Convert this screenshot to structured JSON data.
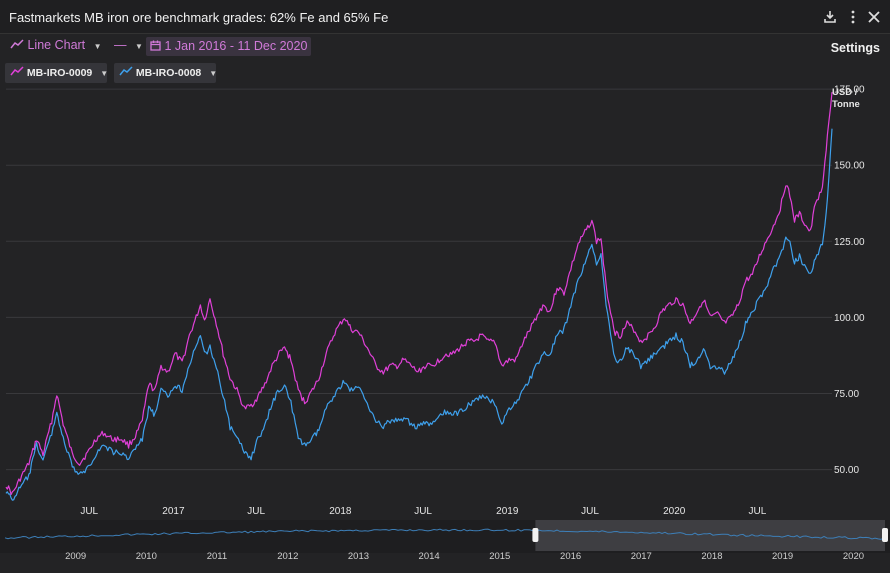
{
  "window": {
    "title": "Fastmarkets MB iron ore benchmark grades: 62% Fe and 65% Fe",
    "download_icon": "download-icon",
    "menu_icon": "vertical-dots-icon",
    "close_icon": "close-icon"
  },
  "toolbar": {
    "chart_type_label": "Line Chart",
    "line_style_label": "—",
    "date_range_label": "1 Jan 2016 - 11 Dec 2020",
    "settings_label": "Settings"
  },
  "series_chips": [
    {
      "label": "MB-IRO-0009",
      "color": "#e040d8"
    },
    {
      "label": "MB-IRO-0008",
      "color": "#3ea0ec"
    }
  ],
  "chart_data": {
    "type": "line",
    "unit_label_line1": "USD /",
    "unit_label_line2": "Tonne",
    "ylim": [
      40,
      178
    ],
    "xlim": [
      "2016-01-01",
      "2020-12-11"
    ],
    "y_ticks": [
      50,
      75,
      100,
      125,
      150,
      175
    ],
    "y_tick_labels": [
      "50.00",
      "75.00",
      "100.00",
      "125.00",
      "150.00",
      "175.00"
    ],
    "x_ticks": [
      {
        "date": "2016-07-01",
        "label": "JUL"
      },
      {
        "date": "2017-01-01",
        "label": "2017"
      },
      {
        "date": "2017-07-01",
        "label": "JUL"
      },
      {
        "date": "2018-01-01",
        "label": "2018"
      },
      {
        "date": "2018-07-01",
        "label": "JUL"
      },
      {
        "date": "2019-01-01",
        "label": "2019"
      },
      {
        "date": "2019-07-01",
        "label": "JUL"
      },
      {
        "date": "2020-01-01",
        "label": "2020"
      },
      {
        "date": "2020-07-01",
        "label": "JUL"
      }
    ],
    "grid": true,
    "series": [
      {
        "name": "MB-IRO-0009",
        "color": "#e040d8",
        "points": [
          [
            "2016-01-01",
            45
          ],
          [
            "2016-01-15",
            42
          ],
          [
            "2016-02-01",
            47
          ],
          [
            "2016-02-20",
            52
          ],
          [
            "2016-03-08",
            60
          ],
          [
            "2016-03-22",
            55
          ],
          [
            "2016-04-10",
            66
          ],
          [
            "2016-04-21",
            75
          ],
          [
            "2016-05-05",
            65
          ],
          [
            "2016-05-25",
            55
          ],
          [
            "2016-06-10",
            52
          ],
          [
            "2016-06-30",
            56
          ],
          [
            "2016-07-15",
            60
          ],
          [
            "2016-08-01",
            62
          ],
          [
            "2016-08-20",
            60
          ],
          [
            "2016-09-10",
            60
          ],
          [
            "2016-09-25",
            58
          ],
          [
            "2016-10-10",
            61
          ],
          [
            "2016-10-25",
            66
          ],
          [
            "2016-11-08",
            78
          ],
          [
            "2016-11-22",
            76
          ],
          [
            "2016-12-05",
            84
          ],
          [
            "2016-12-20",
            82
          ],
          [
            "2017-01-05",
            88
          ],
          [
            "2017-01-20",
            85
          ],
          [
            "2017-02-05",
            94
          ],
          [
            "2017-02-20",
            100
          ],
          [
            "2017-03-01",
            104
          ],
          [
            "2017-03-10",
            99
          ],
          [
            "2017-03-22",
            106
          ],
          [
            "2017-04-05",
            98
          ],
          [
            "2017-04-20",
            88
          ],
          [
            "2017-05-05",
            80
          ],
          [
            "2017-05-20",
            76
          ],
          [
            "2017-06-05",
            70
          ],
          [
            "2017-06-20",
            71
          ],
          [
            "2017-07-05",
            74
          ],
          [
            "2017-07-20",
            78
          ],
          [
            "2017-08-05",
            84
          ],
          [
            "2017-08-20",
            88
          ],
          [
            "2017-09-01",
            90
          ],
          [
            "2017-09-15",
            86
          ],
          [
            "2017-10-01",
            76
          ],
          [
            "2017-10-15",
            72
          ],
          [
            "2017-11-01",
            76
          ],
          [
            "2017-11-15",
            80
          ],
          [
            "2017-12-01",
            88
          ],
          [
            "2017-12-20",
            95
          ],
          [
            "2018-01-10",
            100
          ],
          [
            "2018-01-25",
            96
          ],
          [
            "2018-02-10",
            95
          ],
          [
            "2018-03-01",
            90
          ],
          [
            "2018-03-20",
            84
          ],
          [
            "2018-04-05",
            82
          ],
          [
            "2018-04-20",
            84
          ],
          [
            "2018-05-05",
            84
          ],
          [
            "2018-05-20",
            86
          ],
          [
            "2018-06-05",
            84
          ],
          [
            "2018-06-20",
            82
          ],
          [
            "2018-07-05",
            84
          ],
          [
            "2018-07-20",
            84
          ],
          [
            "2018-08-05",
            86
          ],
          [
            "2018-08-20",
            88
          ],
          [
            "2018-09-05",
            88
          ],
          [
            "2018-09-20",
            90
          ],
          [
            "2018-10-05",
            92
          ],
          [
            "2018-10-20",
            92
          ],
          [
            "2018-11-05",
            94
          ],
          [
            "2018-11-20",
            92
          ],
          [
            "2018-12-05",
            92
          ],
          [
            "2018-12-20",
            84
          ],
          [
            "2019-01-05",
            86
          ],
          [
            "2019-01-20",
            86
          ],
          [
            "2019-02-05",
            92
          ],
          [
            "2019-02-20",
            96
          ],
          [
            "2019-03-05",
            100
          ],
          [
            "2019-03-20",
            104
          ],
          [
            "2019-04-05",
            102
          ],
          [
            "2019-04-20",
            110
          ],
          [
            "2019-05-05",
            108
          ],
          [
            "2019-05-20",
            116
          ],
          [
            "2019-06-05",
            124
          ],
          [
            "2019-06-20",
            128
          ],
          [
            "2019-07-05",
            132
          ],
          [
            "2019-07-15",
            125
          ],
          [
            "2019-07-25",
            126
          ],
          [
            "2019-08-05",
            110
          ],
          [
            "2019-08-15",
            102
          ],
          [
            "2019-08-25",
            95
          ],
          [
            "2019-09-05",
            94
          ],
          [
            "2019-09-20",
            98
          ],
          [
            "2019-10-05",
            96
          ],
          [
            "2019-10-20",
            92
          ],
          [
            "2019-11-05",
            94
          ],
          [
            "2019-11-20",
            97
          ],
          [
            "2019-12-05",
            102
          ],
          [
            "2019-12-20",
            104
          ],
          [
            "2020-01-05",
            106
          ],
          [
            "2020-01-20",
            104
          ],
          [
            "2020-02-05",
            98
          ],
          [
            "2020-02-20",
            102
          ],
          [
            "2020-03-05",
            106
          ],
          [
            "2020-03-20",
            100
          ],
          [
            "2020-04-05",
            101
          ],
          [
            "2020-04-20",
            98
          ],
          [
            "2020-05-05",
            100
          ],
          [
            "2020-05-20",
            104
          ],
          [
            "2020-06-05",
            112
          ],
          [
            "2020-06-20",
            114
          ],
          [
            "2020-07-05",
            120
          ],
          [
            "2020-07-20",
            125
          ],
          [
            "2020-08-05",
            130
          ],
          [
            "2020-08-20",
            136
          ],
          [
            "2020-09-01",
            144
          ],
          [
            "2020-09-10",
            140
          ],
          [
            "2020-09-20",
            132
          ],
          [
            "2020-10-01",
            134
          ],
          [
            "2020-10-15",
            130
          ],
          [
            "2020-10-25",
            128
          ],
          [
            "2020-11-05",
            138
          ],
          [
            "2020-11-20",
            142
          ],
          [
            "2020-12-01",
            160
          ],
          [
            "2020-12-11",
            174
          ]
        ]
      },
      {
        "name": "MB-IRO-0008",
        "color": "#3ea0ec",
        "points": [
          [
            "2016-01-01",
            43
          ],
          [
            "2016-01-15",
            40
          ],
          [
            "2016-02-01",
            44
          ],
          [
            "2016-02-20",
            48
          ],
          [
            "2016-03-08",
            58
          ],
          [
            "2016-03-22",
            53
          ],
          [
            "2016-04-10",
            62
          ],
          [
            "2016-04-21",
            69
          ],
          [
            "2016-05-05",
            60
          ],
          [
            "2016-05-25",
            51
          ],
          [
            "2016-06-10",
            48
          ],
          [
            "2016-06-30",
            51
          ],
          [
            "2016-07-15",
            55
          ],
          [
            "2016-08-01",
            58
          ],
          [
            "2016-08-20",
            56
          ],
          [
            "2016-09-10",
            55
          ],
          [
            "2016-09-25",
            54
          ],
          [
            "2016-10-10",
            57
          ],
          [
            "2016-10-25",
            60
          ],
          [
            "2016-11-08",
            70
          ],
          [
            "2016-11-22",
            68
          ],
          [
            "2016-12-05",
            76
          ],
          [
            "2016-12-20",
            74
          ],
          [
            "2017-01-05",
            78
          ],
          [
            "2017-01-20",
            76
          ],
          [
            "2017-02-05",
            85
          ],
          [
            "2017-02-20",
            90
          ],
          [
            "2017-03-01",
            94
          ],
          [
            "2017-03-10",
            88
          ],
          [
            "2017-03-22",
            90
          ],
          [
            "2017-04-05",
            84
          ],
          [
            "2017-04-20",
            74
          ],
          [
            "2017-05-05",
            64
          ],
          [
            "2017-05-20",
            60
          ],
          [
            "2017-06-05",
            56
          ],
          [
            "2017-06-20",
            54
          ],
          [
            "2017-07-05",
            60
          ],
          [
            "2017-07-20",
            64
          ],
          [
            "2017-08-05",
            72
          ],
          [
            "2017-08-20",
            76
          ],
          [
            "2017-09-01",
            78
          ],
          [
            "2017-09-15",
            72
          ],
          [
            "2017-10-01",
            60
          ],
          [
            "2017-10-15",
            58
          ],
          [
            "2017-11-01",
            60
          ],
          [
            "2017-11-15",
            63
          ],
          [
            "2017-12-01",
            70
          ],
          [
            "2017-12-20",
            75
          ],
          [
            "2018-01-10",
            79
          ],
          [
            "2018-01-25",
            76
          ],
          [
            "2018-02-10",
            77
          ],
          [
            "2018-03-01",
            72
          ],
          [
            "2018-03-20",
            66
          ],
          [
            "2018-04-05",
            64
          ],
          [
            "2018-04-20",
            66
          ],
          [
            "2018-05-05",
            66
          ],
          [
            "2018-05-20",
            67
          ],
          [
            "2018-06-05",
            65
          ],
          [
            "2018-06-20",
            64
          ],
          [
            "2018-07-05",
            65
          ],
          [
            "2018-07-20",
            65
          ],
          [
            "2018-08-05",
            67
          ],
          [
            "2018-08-20",
            69
          ],
          [
            "2018-09-05",
            68
          ],
          [
            "2018-09-20",
            69
          ],
          [
            "2018-10-05",
            71
          ],
          [
            "2018-10-20",
            72
          ],
          [
            "2018-11-05",
            74
          ],
          [
            "2018-11-20",
            73
          ],
          [
            "2018-12-05",
            72
          ],
          [
            "2018-12-20",
            65
          ],
          [
            "2019-01-05",
            70
          ],
          [
            "2019-01-20",
            72
          ],
          [
            "2019-02-05",
            76
          ],
          [
            "2019-02-20",
            80
          ],
          [
            "2019-03-05",
            84
          ],
          [
            "2019-03-20",
            88
          ],
          [
            "2019-04-05",
            88
          ],
          [
            "2019-04-20",
            94
          ],
          [
            "2019-05-05",
            96
          ],
          [
            "2019-05-20",
            104
          ],
          [
            "2019-06-05",
            112
          ],
          [
            "2019-06-20",
            118
          ],
          [
            "2019-07-05",
            124
          ],
          [
            "2019-07-15",
            118
          ],
          [
            "2019-07-25",
            120
          ],
          [
            "2019-08-05",
            104
          ],
          [
            "2019-08-15",
            94
          ],
          [
            "2019-08-25",
            86
          ],
          [
            "2019-09-05",
            86
          ],
          [
            "2019-09-20",
            90
          ],
          [
            "2019-10-05",
            88
          ],
          [
            "2019-10-20",
            84
          ],
          [
            "2019-11-05",
            86
          ],
          [
            "2019-11-20",
            88
          ],
          [
            "2019-12-05",
            90
          ],
          [
            "2019-12-20",
            92
          ],
          [
            "2020-01-05",
            94
          ],
          [
            "2020-01-20",
            92
          ],
          [
            "2020-02-05",
            84
          ],
          [
            "2020-02-20",
            86
          ],
          [
            "2020-03-05",
            90
          ],
          [
            "2020-03-20",
            84
          ],
          [
            "2020-04-05",
            84
          ],
          [
            "2020-04-20",
            82
          ],
          [
            "2020-05-05",
            86
          ],
          [
            "2020-05-20",
            90
          ],
          [
            "2020-06-05",
            98
          ],
          [
            "2020-06-20",
            102
          ],
          [
            "2020-07-05",
            106
          ],
          [
            "2020-07-20",
            110
          ],
          [
            "2020-08-05",
            116
          ],
          [
            "2020-08-20",
            120
          ],
          [
            "2020-09-01",
            126
          ],
          [
            "2020-09-10",
            124
          ],
          [
            "2020-09-20",
            118
          ],
          [
            "2020-10-01",
            120
          ],
          [
            "2020-10-15",
            116
          ],
          [
            "2020-10-25",
            114
          ],
          [
            "2020-11-05",
            120
          ],
          [
            "2020-11-20",
            124
          ],
          [
            "2020-12-01",
            138
          ],
          [
            "2020-12-11",
            162
          ]
        ]
      }
    ]
  },
  "navigator": {
    "year_labels": [
      "2009",
      "2010",
      "2011",
      "2012",
      "2013",
      "2014",
      "2015",
      "2016",
      "2017",
      "2018",
      "2019",
      "2020"
    ],
    "selected_range": [
      "2016-01-01",
      "2020-12-11"
    ]
  }
}
